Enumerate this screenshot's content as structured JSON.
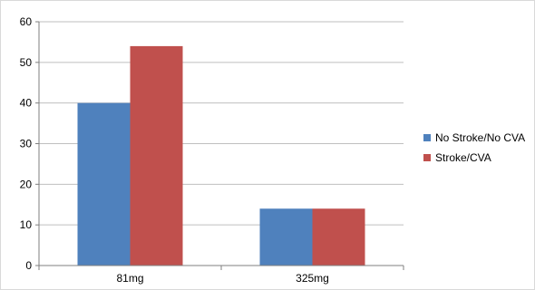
{
  "chart_data": {
    "type": "bar",
    "title": "",
    "xlabel": "",
    "ylabel": "",
    "categories": [
      "81mg",
      "325mg"
    ],
    "series": [
      {
        "name": "No Stroke/No CVA",
        "values": [
          40,
          14
        ],
        "color": "#4F81BD"
      },
      {
        "name": "Stroke/CVA",
        "values": [
          54,
          14
        ],
        "color": "#C0504D"
      }
    ],
    "ylim": [
      0,
      60
    ],
    "yticks": [
      0,
      10,
      20,
      30,
      40,
      50,
      60
    ],
    "grid": true,
    "legend_position": "right"
  }
}
